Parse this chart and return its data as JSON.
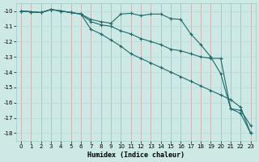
{
  "xlabel": "Humidex (Indice chaleur)",
  "bg_color": "#cce9e5",
  "grid_color_major": "#b8d8d4",
  "grid_color_minor": "#d8edeb",
  "line_color": "#1a6b6b",
  "xlim": [
    -0.5,
    23.5
  ],
  "ylim": [
    -18.5,
    -9.5
  ],
  "yticks": [
    -10,
    -11,
    -12,
    -13,
    -14,
    -15,
    -16,
    -17,
    -18
  ],
  "xticks": [
    0,
    1,
    2,
    3,
    4,
    5,
    6,
    7,
    8,
    9,
    10,
    11,
    12,
    13,
    14,
    15,
    16,
    17,
    18,
    19,
    20,
    21,
    22,
    23
  ],
  "line1_x": [
    0,
    1,
    2,
    3,
    4,
    5,
    6,
    7,
    8,
    9,
    10,
    11,
    12,
    13,
    14,
    15,
    16,
    17,
    18,
    19,
    20,
    21,
    22,
    23
  ],
  "line1_y": [
    -10.0,
    -10.05,
    -10.1,
    -9.9,
    -10.0,
    -10.1,
    -10.2,
    -10.55,
    -10.7,
    -10.8,
    -10.2,
    -10.15,
    -10.3,
    -10.2,
    -10.2,
    -10.5,
    -10.55,
    -11.5,
    -12.2,
    -13.0,
    -14.1,
    -16.4,
    -16.7,
    -18.0
  ],
  "line2_x": [
    0,
    1,
    2,
    3,
    4,
    5,
    6,
    7,
    8,
    9,
    10,
    11,
    12,
    13,
    14,
    15,
    16,
    17,
    18,
    19,
    20,
    21,
    22,
    23
  ],
  "line2_y": [
    -10.0,
    -10.05,
    -10.1,
    -9.9,
    -10.0,
    -10.1,
    -10.2,
    -10.7,
    -10.9,
    -11.0,
    -11.3,
    -11.5,
    -11.8,
    -12.0,
    -12.2,
    -12.5,
    -12.6,
    -12.8,
    -13.0,
    -13.1,
    -13.1,
    -16.4,
    -16.5,
    -17.5
  ],
  "line3_x": [
    0,
    1,
    2,
    3,
    4,
    5,
    6,
    7,
    8,
    9,
    10,
    11,
    12,
    13,
    14,
    15,
    16,
    17,
    18,
    19,
    20,
    21,
    22,
    23
  ],
  "line3_y": [
    -10.0,
    -10.05,
    -10.1,
    -9.9,
    -10.0,
    -10.1,
    -10.2,
    -11.2,
    -11.5,
    -11.9,
    -12.3,
    -12.8,
    -13.1,
    -13.4,
    -13.7,
    -14.0,
    -14.3,
    -14.6,
    -14.9,
    -15.2,
    -15.5,
    -15.8,
    -16.3,
    -18.0
  ]
}
